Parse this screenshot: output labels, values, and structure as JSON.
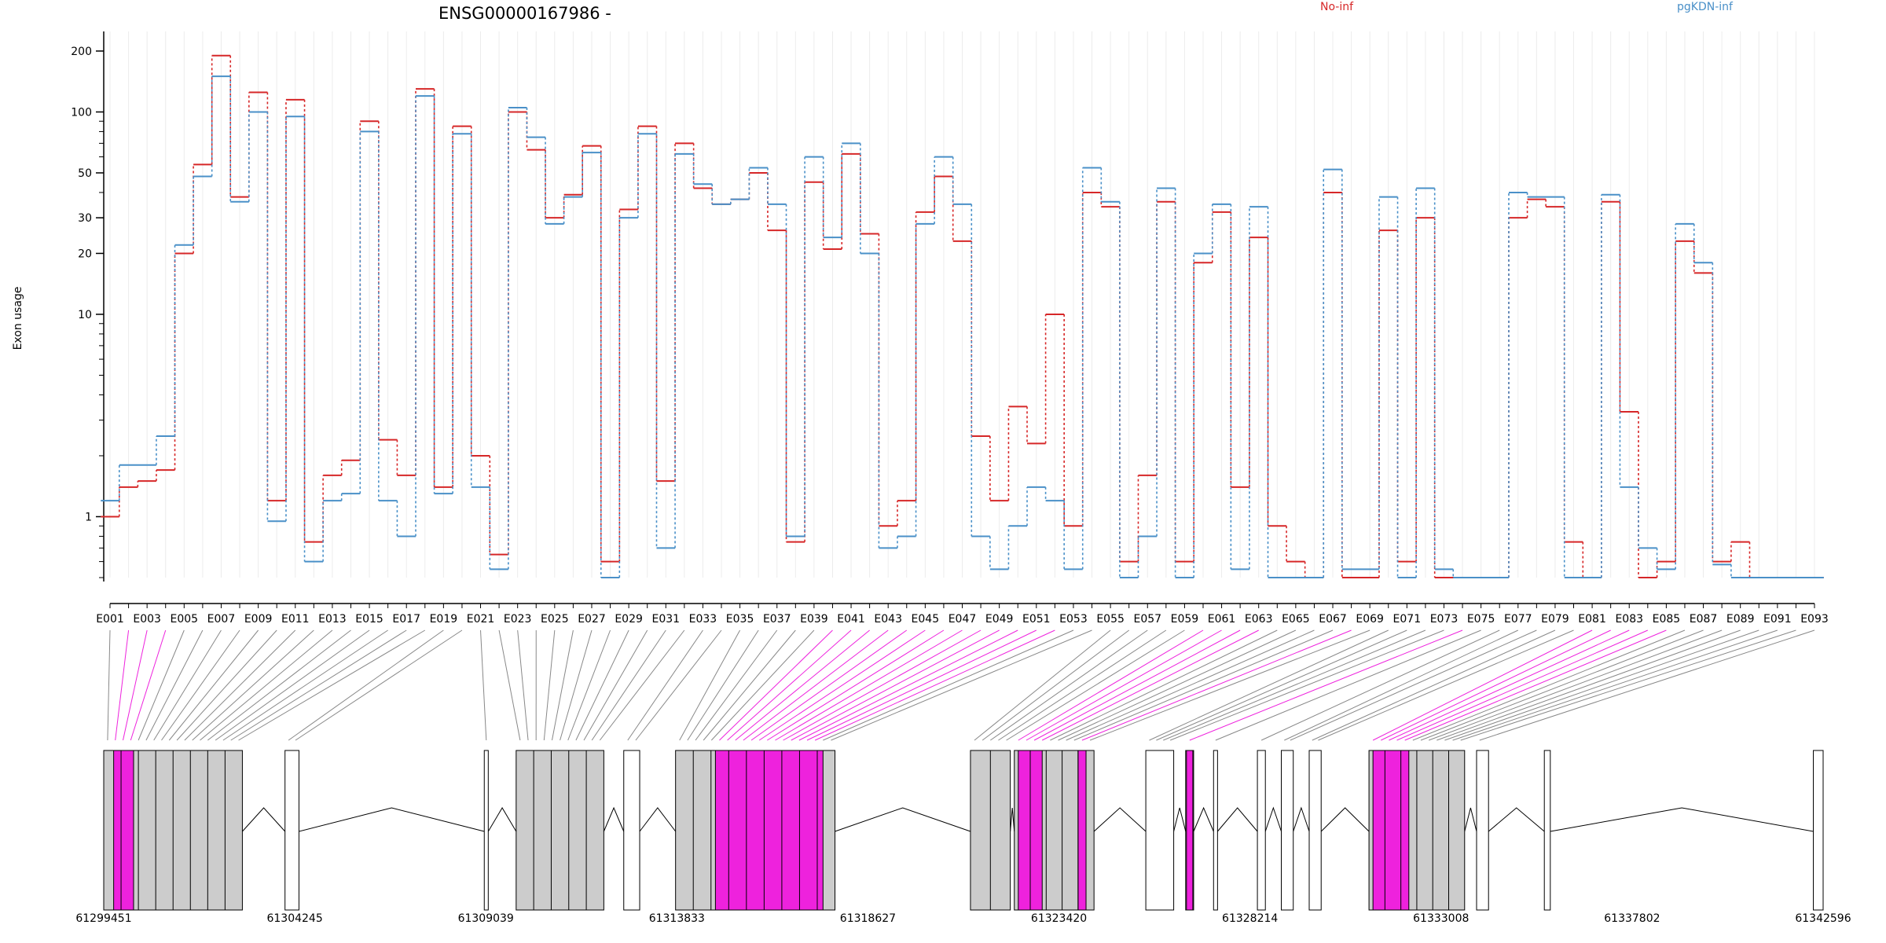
{
  "chart_data": {
    "type": "line",
    "title": "ENSG00000167986 -",
    "ylabel": "Exon usage",
    "y_scale": "log",
    "y_ticks": [
      1,
      10,
      20,
      30,
      50,
      100,
      200
    ],
    "ylim": [
      0.5,
      250
    ],
    "legend_placement": "top",
    "colors": {
      "No-inf": "#d62728",
      "pgKDN-inf": "#4a90c8",
      "highlight_exon": "#ee22dd",
      "normal_exon": "#cccccc",
      "connector": "#888888"
    },
    "categories": [
      "E001",
      "E002",
      "E003",
      "E004",
      "E005",
      "E006",
      "E007",
      "E008",
      "E009",
      "E010",
      "E011",
      "E012",
      "E013",
      "E014",
      "E015",
      "E016",
      "E017",
      "E018",
      "E019",
      "E020",
      "E021",
      "E022",
      "E023",
      "E024",
      "E025",
      "E026",
      "E027",
      "E028",
      "E029",
      "E030",
      "E031",
      "E032",
      "E033",
      "E034",
      "E035",
      "E036",
      "E037",
      "E038",
      "E039",
      "E040",
      "E041",
      "E042",
      "E043",
      "E044",
      "E045",
      "E046",
      "E047",
      "E048",
      "E049",
      "E050",
      "E051",
      "E052",
      "E053",
      "E054",
      "E055",
      "E056",
      "E057",
      "E058",
      "E059",
      "E060",
      "E061",
      "E062",
      "E063",
      "E064",
      "E065",
      "E066",
      "E067",
      "E068",
      "E069",
      "E070",
      "E071",
      "E072",
      "E073",
      "E074",
      "E075",
      "E076",
      "E077",
      "E078",
      "E079",
      "E080",
      "E081",
      "E082",
      "E083",
      "E084",
      "E085",
      "E086",
      "E087",
      "E088",
      "E089",
      "E090",
      "E091",
      "E092",
      "E093"
    ],
    "series": [
      {
        "name": "No-inf",
        "values": [
          1,
          1.4,
          1.5,
          1.7,
          20,
          55,
          190,
          38,
          125,
          1.2,
          115,
          0.75,
          1.6,
          1.9,
          90,
          2.4,
          1.6,
          130,
          1.4,
          85,
          2,
          0.65,
          100,
          65,
          30,
          39,
          68,
          0.6,
          33,
          85,
          1.5,
          70,
          42,
          35,
          37,
          50,
          26,
          0.75,
          45,
          21,
          62,
          25,
          0.9,
          1.2,
          32,
          48,
          23,
          2.5,
          1.2,
          3.5,
          2.3,
          10,
          0.9,
          40,
          34,
          0.6,
          1.6,
          36,
          0.6,
          18,
          32,
          1.4,
          24,
          0.9,
          0.6,
          0.5,
          40,
          0.5,
          0.5,
          26,
          0.6,
          30,
          0.5,
          0.5,
          0.5,
          0.5,
          30,
          37,
          34,
          0.75,
          0.5,
          36,
          3.3,
          0.5,
          0.6,
          23,
          16,
          0.6,
          0.75,
          0.5,
          0.5,
          0.5,
          0.5
        ]
      },
      {
        "name": "pgKDN-inf",
        "values": [
          1.2,
          1.8,
          1.8,
          2.5,
          22,
          48,
          150,
          36,
          100,
          0.95,
          95,
          0.6,
          1.2,
          1.3,
          80,
          1.2,
          0.8,
          120,
          1.3,
          78,
          1.4,
          0.55,
          105,
          75,
          28,
          38,
          63,
          0.5,
          30,
          78,
          0.7,
          62,
          44,
          35,
          37,
          53,
          35,
          0.8,
          60,
          24,
          70,
          20,
          0.7,
          0.8,
          28,
          60,
          35,
          0.8,
          0.55,
          0.9,
          1.4,
          1.2,
          0.55,
          53,
          36,
          0.5,
          0.8,
          42,
          0.5,
          20,
          35,
          0.55,
          34,
          0.5,
          0.5,
          0.5,
          52,
          0.55,
          0.55,
          38,
          0.5,
          42,
          0.55,
          0.5,
          0.5,
          0.5,
          40,
          38,
          38,
          0.5,
          0.5,
          39,
          1.4,
          0.7,
          0.55,
          28,
          18,
          0.58,
          0.5,
          0.5,
          0.5,
          0.5,
          0.5
        ]
      }
    ],
    "x_tick_labels": [
      "E001",
      "E003",
      "E005",
      "E007",
      "E009",
      "E011",
      "E013",
      "E015",
      "E017",
      "E019",
      "E021",
      "E023",
      "E025",
      "E027",
      "E029",
      "E031",
      "E033",
      "E035",
      "E037",
      "E039",
      "E041",
      "E043",
      "E045",
      "E047",
      "E049",
      "E051",
      "E053",
      "E055",
      "E057",
      "E059",
      "E061",
      "E063",
      "E065",
      "E067",
      "E069",
      "E071",
      "E073",
      "E075",
      "E077",
      "E079",
      "E081",
      "E083",
      "E085",
      "E087",
      "E089",
      "E091",
      "E093"
    ],
    "coordinate_labels": [
      "61299451",
      "61304245",
      "61309039",
      "61313833",
      "61318627",
      "61323420",
      "61328214",
      "61333008",
      "61337802",
      "61342596"
    ],
    "genomic_range": [
      61299451,
      61342596
    ],
    "exon_groups": [
      {
        "start": 61299451,
        "end": 61302930,
        "highlight": [
          [
            61299700,
            61300200
          ]
        ]
      },
      {
        "start": 61304000,
        "end": 61304350,
        "highlight": []
      },
      {
        "start": 61309000,
        "end": 61309100,
        "highlight": []
      },
      {
        "start": 61309800,
        "end": 61312000,
        "highlight": []
      },
      {
        "start": 61312500,
        "end": 61312900,
        "highlight": []
      },
      {
        "start": 61313800,
        "end": 61317800,
        "highlight": [
          [
            61314800,
            61317500
          ]
        ]
      },
      {
        "start": 61321200,
        "end": 61322200,
        "highlight": []
      },
      {
        "start": 61322300,
        "end": 61324300,
        "highlight": [
          [
            61322400,
            61323000
          ],
          [
            61323900,
            61324100
          ]
        ]
      },
      {
        "start": 61325600,
        "end": 61326300,
        "highlight": []
      },
      {
        "start": 61326600,
        "end": 61326800,
        "highlight": [
          [
            61326620,
            61326780
          ]
        ]
      },
      {
        "start": 61327300,
        "end": 61327400,
        "highlight": []
      },
      {
        "start": 61328400,
        "end": 61328600,
        "highlight": []
      },
      {
        "start": 61329000,
        "end": 61329300,
        "highlight": []
      },
      {
        "start": 61329700,
        "end": 61330000,
        "highlight": []
      },
      {
        "start": 61331200,
        "end": 61333600,
        "highlight": [
          [
            61331300,
            61332200
          ]
        ]
      },
      {
        "start": 61333900,
        "end": 61334200,
        "highlight": []
      },
      {
        "start": 61335600,
        "end": 61335750,
        "highlight": []
      },
      {
        "start": 61342350,
        "end": 61342596,
        "highlight": []
      }
    ]
  },
  "legend": {
    "no_inf": "No-inf",
    "pgkdn_inf": "pgKDN-inf"
  }
}
